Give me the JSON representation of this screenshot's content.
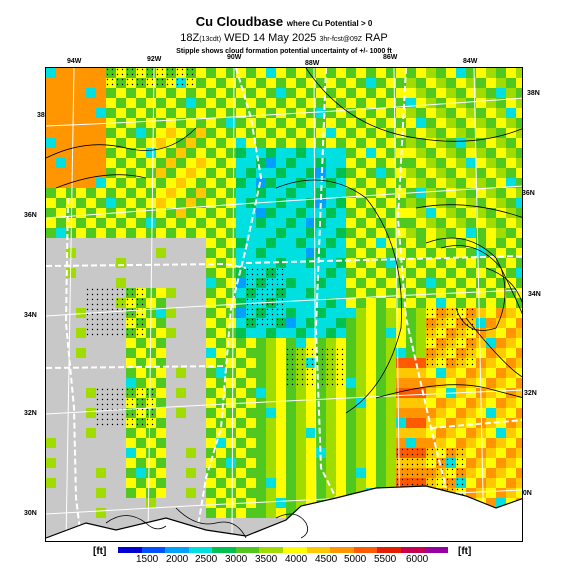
{
  "header": {
    "title": "Cu Cloudbase",
    "title_suffix": "where Cu Potential > 0",
    "valid_time": "18Z",
    "valid_local": "(13cdt)",
    "valid_date": "WED 14 May 2025",
    "run_info": "3hr-fcst@09Z",
    "model": "RAP",
    "stipple_note": "Stipple shows cloud formation potential uncertainty of +/- 1000 ft"
  },
  "map": {
    "lon_labels": [
      "94W",
      "92W",
      "90W",
      "88W",
      "86W",
      "84W"
    ],
    "lat_labels_left": [
      "36N",
      "34N",
      "32N",
      "30N"
    ],
    "lat_labels_right": [
      "38N",
      "36N",
      "34N",
      "32N",
      "30N"
    ],
    "lat_label_top_left": "38N",
    "land_gray": "#c8c8c8"
  },
  "colorbar": {
    "unit_left": "[ft]",
    "unit_right": "[ft]",
    "ticks": [
      "1500",
      "2000",
      "2500",
      "3000",
      "3500",
      "4000",
      "4500",
      "5000",
      "5500",
      "6000"
    ],
    "colors": [
      "#0000d0",
      "#0050ff",
      "#00a0ff",
      "#00e0e0",
      "#00c050",
      "#50c820",
      "#a0dc00",
      "#ffff00",
      "#ffc800",
      "#ff9600",
      "#ff5a00",
      "#e61e00",
      "#c80050",
      "#9600a0"
    ]
  }
}
